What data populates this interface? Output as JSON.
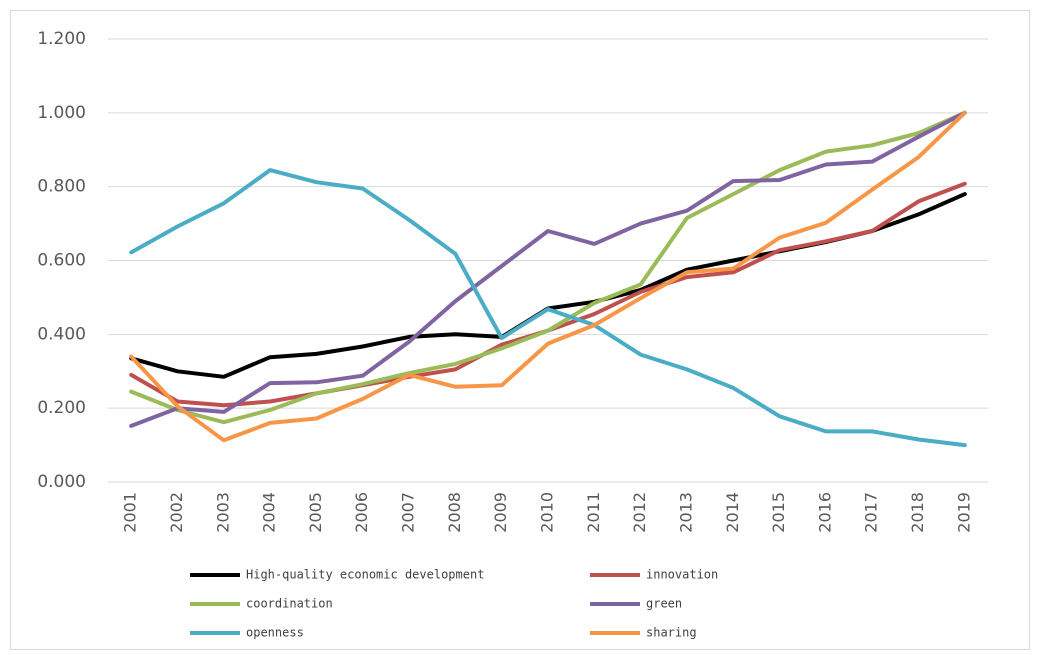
{
  "chart_data": {
    "type": "line",
    "categories": [
      "2001",
      "2002",
      "2003",
      "2004",
      "2005",
      "2006",
      "2007",
      "2008",
      "2009",
      "2010",
      "2011",
      "2012",
      "2013",
      "2014",
      "2015",
      "2016",
      "2017",
      "2018",
      "2019"
    ],
    "ylim": [
      0,
      1.2
    ],
    "yticks": [
      {
        "value": 0,
        "label": "0.000"
      },
      {
        "value": 0.2,
        "label": "0.200"
      },
      {
        "value": 0.4,
        "label": "0.400"
      },
      {
        "value": 0.6,
        "label": "0.600"
      },
      {
        "value": 0.8,
        "label": "0.800"
      },
      {
        "value": 1.0,
        "label": "1.000"
      },
      {
        "value": 1.2,
        "label": "1.200"
      }
    ],
    "grid": true,
    "legend": "bottom",
    "series": [
      {
        "name": "High-quality economic development",
        "color": "#000000",
        "values": [
          0.335,
          0.3,
          0.285,
          0.338,
          0.347,
          0.367,
          0.393,
          0.4,
          0.393,
          0.47,
          0.488,
          0.52,
          0.575,
          0.6,
          0.625,
          0.65,
          0.68,
          0.725,
          0.78
        ]
      },
      {
        "name": "innovation",
        "color": "#c0504d",
        "values": [
          0.29,
          0.218,
          0.208,
          0.218,
          0.24,
          0.262,
          0.285,
          0.305,
          0.372,
          0.41,
          0.455,
          0.515,
          0.555,
          0.568,
          0.628,
          0.652,
          0.68,
          0.76,
          0.808
        ]
      },
      {
        "name": "coordination",
        "color": "#9bbb59",
        "values": [
          0.245,
          0.195,
          0.162,
          0.195,
          0.24,
          0.265,
          0.295,
          0.32,
          0.362,
          0.41,
          0.485,
          0.535,
          0.715,
          0.78,
          0.845,
          0.895,
          0.912,
          0.945,
          1.0
        ]
      },
      {
        "name": "green",
        "color": "#8064a2",
        "values": [
          0.152,
          0.2,
          0.19,
          0.268,
          0.27,
          0.288,
          0.38,
          0.49,
          0.585,
          0.68,
          0.645,
          0.7,
          0.735,
          0.815,
          0.818,
          0.86,
          0.868,
          0.935,
          1.0
        ]
      },
      {
        "name": "openness",
        "color": "#4bacc6",
        "values": [
          0.622,
          0.692,
          0.755,
          0.845,
          0.812,
          0.795,
          0.71,
          0.618,
          0.39,
          0.468,
          0.425,
          0.345,
          0.305,
          0.255,
          0.178,
          0.137,
          0.137,
          0.115,
          0.1
        ]
      },
      {
        "name": "sharing",
        "color": "#f79646",
        "values": [
          0.34,
          0.205,
          0.113,
          0.16,
          0.172,
          0.225,
          0.29,
          0.258,
          0.262,
          0.375,
          0.425,
          0.498,
          0.568,
          0.578,
          0.662,
          0.702,
          0.792,
          0.88,
          1.0
        ]
      }
    ]
  }
}
